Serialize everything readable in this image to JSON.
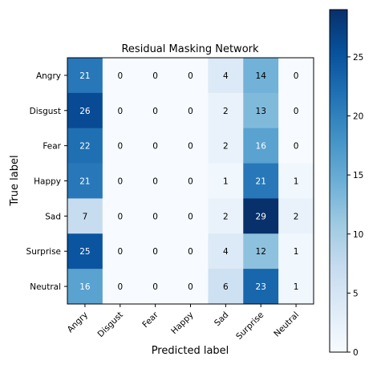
{
  "chart_data": {
    "type": "heatmap",
    "title": "Residual Masking Network",
    "xlabel": "Predicted label",
    "ylabel": "True label",
    "x_categories": [
      "Angry",
      "Disgust",
      "Fear",
      "Happy",
      "Sad",
      "Surprise",
      "Neutral"
    ],
    "y_categories": [
      "Angry",
      "Disgust",
      "Fear",
      "Happy",
      "Sad",
      "Surprise",
      "Neutral"
    ],
    "values": [
      [
        21,
        0,
        0,
        0,
        4,
        14,
        0
      ],
      [
        26,
        0,
        0,
        0,
        2,
        13,
        0
      ],
      [
        22,
        0,
        0,
        0,
        2,
        16,
        0
      ],
      [
        21,
        0,
        0,
        0,
        1,
        21,
        1
      ],
      [
        7,
        0,
        0,
        0,
        2,
        29,
        2
      ],
      [
        25,
        0,
        0,
        0,
        4,
        12,
        1
      ],
      [
        16,
        0,
        0,
        0,
        6,
        23,
        1
      ]
    ],
    "colormap": "Blues",
    "colormap_low": "#f7fbff",
    "colormap_high": "#08306b",
    "value_range": [
      0,
      29
    ],
    "colorbar_ticks": [
      0,
      5,
      10,
      15,
      20,
      25
    ],
    "x_tick_rotation": 45
  }
}
